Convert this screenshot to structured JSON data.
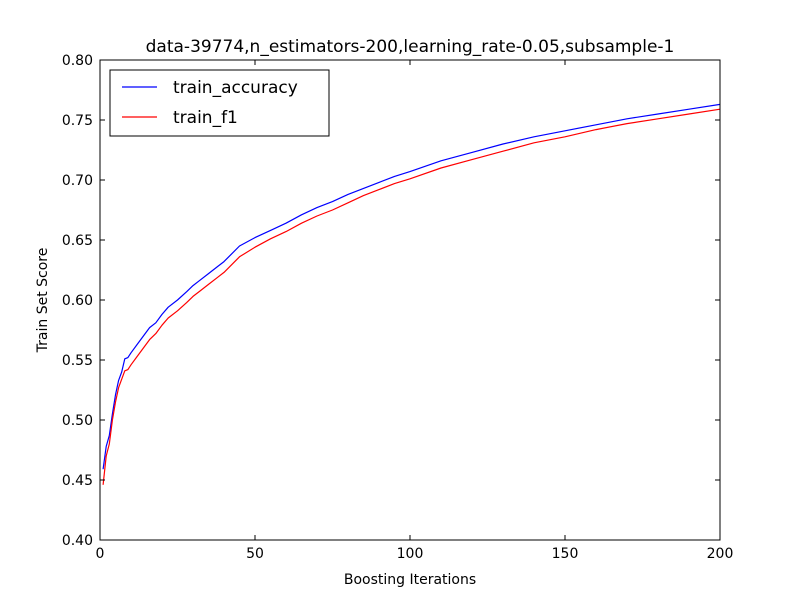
{
  "chart_data": {
    "type": "line",
    "title": "data-39774,n_estimators-200,learning_rate-0.05,subsample-1",
    "xlabel": "Boosting Iterations",
    "ylabel": "Train Set Score",
    "xlim": [
      0,
      200
    ],
    "ylim": [
      0.4,
      0.8
    ],
    "xticks": [
      0,
      50,
      100,
      150,
      200
    ],
    "yticks": [
      0.4,
      0.45,
      0.5,
      0.55,
      0.6,
      0.65,
      0.7,
      0.75,
      0.8
    ],
    "xtick_labels": [
      "0",
      "50",
      "100",
      "150",
      "200"
    ],
    "ytick_labels": [
      "0.40",
      "0.45",
      "0.50",
      "0.55",
      "0.60",
      "0.65",
      "0.70",
      "0.75",
      "0.80"
    ],
    "grid": false,
    "legend_position": "top-left",
    "series": [
      {
        "name": "train_accuracy",
        "color": "#0000ff",
        "x": [
          1,
          2,
          3,
          4,
          5,
          6,
          7,
          8,
          9,
          10,
          12,
          14,
          16,
          18,
          20,
          22,
          25,
          28,
          30,
          32,
          35,
          38,
          40,
          45,
          50,
          55,
          60,
          65,
          70,
          75,
          80,
          85,
          90,
          95,
          100,
          110,
          120,
          130,
          140,
          150,
          160,
          170,
          180,
          190,
          200
        ],
        "y": [
          0.459,
          0.478,
          0.487,
          0.505,
          0.521,
          0.533,
          0.54,
          0.551,
          0.552,
          0.556,
          0.563,
          0.57,
          0.577,
          0.581,
          0.588,
          0.594,
          0.6,
          0.607,
          0.612,
          0.616,
          0.622,
          0.628,
          0.632,
          0.645,
          0.652,
          0.658,
          0.664,
          0.671,
          0.677,
          0.682,
          0.688,
          0.693,
          0.698,
          0.703,
          0.707,
          0.716,
          0.723,
          0.73,
          0.736,
          0.741,
          0.746,
          0.751,
          0.755,
          0.759,
          0.763
        ]
      },
      {
        "name": "train_f1",
        "color": "#ff0000",
        "x": [
          1,
          2,
          3,
          4,
          5,
          6,
          7,
          8,
          9,
          10,
          12,
          14,
          16,
          18,
          20,
          22,
          25,
          28,
          30,
          32,
          35,
          38,
          40,
          45,
          50,
          55,
          60,
          65,
          70,
          75,
          80,
          85,
          90,
          95,
          100,
          110,
          120,
          130,
          140,
          150,
          160,
          170,
          180,
          190,
          200
        ],
        "y": [
          0.446,
          0.47,
          0.48,
          0.5,
          0.515,
          0.527,
          0.534,
          0.541,
          0.542,
          0.546,
          0.553,
          0.56,
          0.567,
          0.572,
          0.579,
          0.585,
          0.591,
          0.598,
          0.603,
          0.607,
          0.613,
          0.619,
          0.623,
          0.636,
          0.644,
          0.651,
          0.657,
          0.664,
          0.67,
          0.675,
          0.681,
          0.687,
          0.692,
          0.697,
          0.701,
          0.71,
          0.717,
          0.724,
          0.731,
          0.736,
          0.742,
          0.747,
          0.751,
          0.755,
          0.759
        ]
      }
    ]
  }
}
